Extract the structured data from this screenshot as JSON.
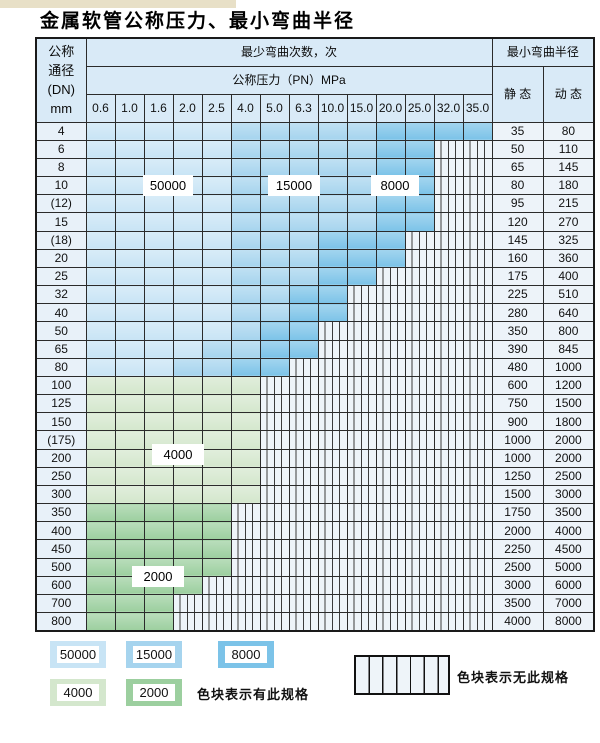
{
  "title": "金属软管公称压力、最小弯曲半径",
  "colors": {
    "blue_light": "#c8e4f5",
    "blue_med": "#a6d4ee",
    "blue_dark": "#7cc3e8",
    "green_light": "#d4e7cd",
    "green_med": "#9ccf9f"
  },
  "table": {
    "dn_header_lines": [
      "公称",
      "通径",
      "(DN)",
      "mm"
    ],
    "bend_header": "最少弯曲次数，次",
    "pressure_header": "公称压力（PN）MPa",
    "pressure_cols": [
      "0.6",
      "1.0",
      "1.6",
      "2.0",
      "2.5",
      "4.0",
      "5.0",
      "6.3",
      "10.0",
      "15.0",
      "20.0",
      "25.0",
      "32.0",
      "35.0"
    ],
    "radius_header": "最小弯曲半径",
    "static_header": "静 态",
    "dynamic_header": "动 态",
    "rows": [
      {
        "dn": "4",
        "zone": "blue",
        "light_end": 4,
        "med_end": 9,
        "end": 13,
        "max_pn": "35.0",
        "static": "35",
        "dynamic": "80"
      },
      {
        "dn": "6",
        "zone": "blue",
        "light_end": 4,
        "med_end": 9,
        "end": 11,
        "max_pn": "25.0",
        "static": "50",
        "dynamic": "110"
      },
      {
        "dn": "8",
        "zone": "blue",
        "light_end": 4,
        "med_end": 9,
        "end": 11,
        "max_pn": "25.0",
        "static": "65",
        "dynamic": "145"
      },
      {
        "dn": "10",
        "zone": "blue",
        "light_end": 4,
        "med_end": 9,
        "end": 11,
        "max_pn": "25.0",
        "static": "80",
        "dynamic": "180"
      },
      {
        "dn": "(12)",
        "zone": "blue",
        "light_end": 4,
        "med_end": 9,
        "end": 11,
        "max_pn": "25.0",
        "static": "95",
        "dynamic": "215"
      },
      {
        "dn": "15",
        "zone": "blue",
        "light_end": 4,
        "med_end": 9,
        "end": 11,
        "max_pn": "25.0",
        "static": "120",
        "dynamic": "270"
      },
      {
        "dn": "(18)",
        "zone": "blue",
        "light_end": 4,
        "med_end": 7,
        "end": 10,
        "max_pn": "20.0",
        "static": "145",
        "dynamic": "325"
      },
      {
        "dn": "20",
        "zone": "blue",
        "light_end": 4,
        "med_end": 7,
        "end": 10,
        "max_pn": "20.0",
        "static": "160",
        "dynamic": "360"
      },
      {
        "dn": "25",
        "zone": "blue",
        "light_end": 4,
        "med_end": 7,
        "end": 9,
        "max_pn": "15.0",
        "static": "175",
        "dynamic": "400"
      },
      {
        "dn": "32",
        "zone": "blue",
        "light_end": 4,
        "med_end": 6,
        "end": 8,
        "max_pn": "10.0",
        "static": "225",
        "dynamic": "510"
      },
      {
        "dn": "40",
        "zone": "blue",
        "light_end": 4,
        "med_end": 6,
        "end": 8,
        "max_pn": "10.0",
        "static": "280",
        "dynamic": "640"
      },
      {
        "dn": "50",
        "zone": "blue",
        "light_end": 4,
        "med_end": 5,
        "end": 7,
        "max_pn": "6.3",
        "static": "350",
        "dynamic": "800"
      },
      {
        "dn": "65",
        "zone": "blue",
        "light_end": 3,
        "med_end": 5,
        "end": 7,
        "max_pn": "6.3",
        "static": "390",
        "dynamic": "845"
      },
      {
        "dn": "80",
        "zone": "blue",
        "light_end": 2,
        "med_end": 4,
        "end": 6,
        "max_pn": "5.0",
        "static": "480",
        "dynamic": "1000"
      },
      {
        "dn": "100",
        "zone": "green-4000",
        "end": 5,
        "max_pn": "4.0",
        "static": "600",
        "dynamic": "1200"
      },
      {
        "dn": "125",
        "zone": "green-4000",
        "end": 5,
        "max_pn": "4.0",
        "static": "750",
        "dynamic": "1500"
      },
      {
        "dn": "150",
        "zone": "green-4000",
        "end": 5,
        "max_pn": "4.0",
        "static": "900",
        "dynamic": "1800"
      },
      {
        "dn": "(175)",
        "zone": "green-4000",
        "end": 5,
        "max_pn": "4.0",
        "static": "1000",
        "dynamic": "2000"
      },
      {
        "dn": "200",
        "zone": "green-4000",
        "end": 5,
        "max_pn": "4.0",
        "static": "1000",
        "dynamic": "2000"
      },
      {
        "dn": "250",
        "zone": "green-4000",
        "end": 5,
        "max_pn": "4.0",
        "static": "1250",
        "dynamic": "2500"
      },
      {
        "dn": "300",
        "zone": "green-4000",
        "end": 5,
        "max_pn": "4.0",
        "static": "1500",
        "dynamic": "3000"
      },
      {
        "dn": "350",
        "zone": "green-2000",
        "end": 4,
        "max_pn": "2.5",
        "static": "1750",
        "dynamic": "3500"
      },
      {
        "dn": "400",
        "zone": "green-2000",
        "end": 4,
        "max_pn": "2.5",
        "static": "2000",
        "dynamic": "4000"
      },
      {
        "dn": "450",
        "zone": "green-2000",
        "end": 4,
        "max_pn": "2.5",
        "static": "2250",
        "dynamic": "4500"
      },
      {
        "dn": "500",
        "zone": "green-2000",
        "end": 4,
        "max_pn": "2.5",
        "static": "2500",
        "dynamic": "5000"
      },
      {
        "dn": "600",
        "zone": "green-2000",
        "end": 3,
        "max_pn": "2.0",
        "static": "3000",
        "dynamic": "6000"
      },
      {
        "dn": "700",
        "zone": "green-2000",
        "end": 2,
        "max_pn": "1.6",
        "static": "3500",
        "dynamic": "7000"
      },
      {
        "dn": "800",
        "zone": "green-2000",
        "end": 2,
        "max_pn": "1.6",
        "static": "4000",
        "dynamic": "8000"
      }
    ]
  },
  "overlays": [
    {
      "text": "50000"
    },
    {
      "text": "15000"
    },
    {
      "text": "8000"
    },
    {
      "text": "4000"
    },
    {
      "text": "2000"
    }
  ],
  "legend": {
    "items": [
      {
        "value": "50000",
        "color_key": "blue_light"
      },
      {
        "value": "15000",
        "color_key": "blue_med"
      },
      {
        "value": "8000",
        "color_key": "blue_dark"
      },
      {
        "value": "4000",
        "color_key": "green_light"
      },
      {
        "value": "2000",
        "color_key": "green_med"
      }
    ],
    "has_spec_text": "色块表示有此规格",
    "no_spec_text": "色块表示无此规格"
  }
}
